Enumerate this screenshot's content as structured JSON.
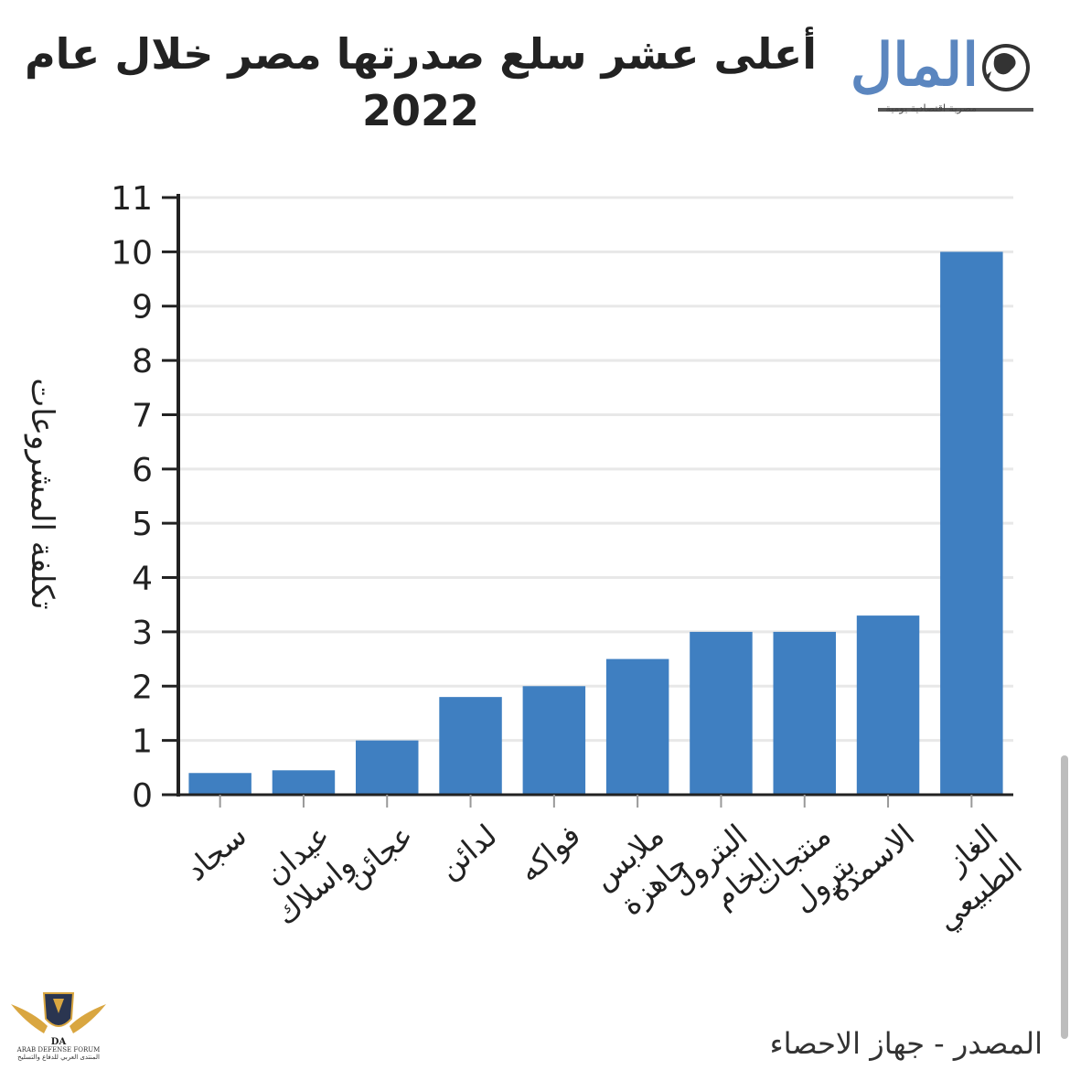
{
  "title": "أعلى عشر سلع صدرتها مصر خلال عام 2022",
  "logo": {
    "name": "المال",
    "tagline": "مصرية اقتصادية يومية"
  },
  "source": "المصدر - جهاز الاحصاء",
  "watermark": {
    "initials": "DA",
    "name": "ARAB DEFENSE FORUM",
    "subtitle": "المنتدى العربي للدفاع والتسليح"
  },
  "colors": {
    "bar": "#3f7fc1",
    "grid": "#e8e8e8",
    "axis": "#222222",
    "logo": "#5b86bf"
  },
  "chart_data": {
    "type": "bar",
    "ylabel": "تكلفة المشروعات",
    "xlabel": "",
    "ylim": [
      0,
      11
    ],
    "yticks": [
      0,
      1,
      2,
      3,
      4,
      5,
      6,
      7,
      8,
      9,
      10,
      11
    ],
    "grid": true,
    "categories": [
      "سجاد",
      "عيدان واسلاك",
      "عجائن",
      "لدائن",
      "فواكه",
      "ملابس جاهزة",
      "البترول الخام",
      "منتجات بترول",
      "الاسمدة",
      "الغاز الطبيعي"
    ],
    "values": [
      0.4,
      0.45,
      1.0,
      1.8,
      2.0,
      2.5,
      3.0,
      3.0,
      3.3,
      10.0
    ]
  }
}
